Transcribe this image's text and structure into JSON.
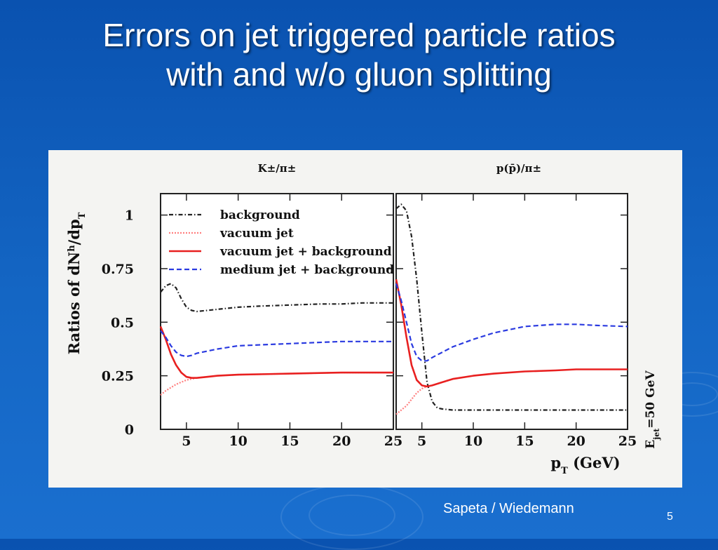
{
  "slide": {
    "title_line1": "Errors on jet triggered particle ratios",
    "title_line2": "with and w/o gluon splitting",
    "footer_credit": "Sapeta / Wiedemann",
    "page_number": "5"
  },
  "chart_data": {
    "type": "line",
    "ylabel": "Ratios of dN^h/dp_T",
    "xlabel": "p_T (GeV)",
    "side_label": "E_jet=50 GeV",
    "xlim": [
      2.5,
      25
    ],
    "ylim": [
      0,
      1.1
    ],
    "x_ticks": [
      5,
      10,
      15,
      20,
      25
    ],
    "y_ticks": [
      0,
      0.25,
      0.5,
      0.75,
      1
    ],
    "x_tick_labels": [
      "5",
      "10",
      "15",
      "20",
      "25"
    ],
    "y_tick_labels": [
      "0",
      "0.25",
      "0.5",
      "0.75",
      "1"
    ],
    "legend_position": "top-left of left panel",
    "series_styles": [
      {
        "name": "background",
        "color": "#222222",
        "dash": "dashdot"
      },
      {
        "name": "vacuum jet",
        "color": "#ff8080",
        "dash": "dotted"
      },
      {
        "name": "vacuum jet + background",
        "color": "#e82020",
        "dash": "solid"
      },
      {
        "name": "medium jet + background",
        "color": "#2a3ae0",
        "dash": "dashed"
      }
    ],
    "panels": [
      {
        "title": "K±/π±",
        "series": [
          {
            "name": "background",
            "x": [
              2.5,
              3,
              3.5,
              4,
              4.5,
              5,
              5.5,
              6,
              7,
              8,
              10,
              12,
              15,
              18,
              20,
              22,
              25
            ],
            "y": [
              0.64,
              0.67,
              0.68,
              0.66,
              0.61,
              0.57,
              0.555,
              0.55,
              0.555,
              0.56,
              0.57,
              0.575,
              0.58,
              0.585,
              0.585,
              0.59,
              0.59
            ]
          },
          {
            "name": "vacuum jet",
            "x": [
              2.5,
              3,
              4,
              5,
              6,
              8,
              10,
              15,
              20,
              25
            ],
            "y": [
              0.16,
              0.18,
              0.21,
              0.23,
              0.24,
              0.25,
              0.255,
              0.26,
              0.265,
              0.265
            ]
          },
          {
            "name": "vacuum jet + background",
            "x": [
              2.5,
              3,
              3.5,
              4,
              4.5,
              5,
              5.5,
              6,
              7,
              8,
              10,
              15,
              20,
              25
            ],
            "y": [
              0.48,
              0.42,
              0.35,
              0.3,
              0.265,
              0.245,
              0.24,
              0.24,
              0.245,
              0.25,
              0.255,
              0.26,
              0.265,
              0.265
            ]
          },
          {
            "name": "medium jet + background",
            "x": [
              2.5,
              3,
              3.5,
              4,
              4.5,
              5,
              5.5,
              6,
              8,
              10,
              15,
              20,
              25
            ],
            "y": [
              0.46,
              0.43,
              0.39,
              0.36,
              0.345,
              0.34,
              0.345,
              0.355,
              0.375,
              0.39,
              0.4,
              0.41,
              0.41
            ]
          }
        ]
      },
      {
        "title": "p(p̄)/π±",
        "series": [
          {
            "name": "background",
            "x": [
              2.5,
              3,
              3.5,
              4,
              4.5,
              5,
              5.5,
              6,
              6.5,
              7,
              8,
              10,
              15,
              20,
              25
            ],
            "y": [
              1.03,
              1.05,
              1.02,
              0.9,
              0.7,
              0.45,
              0.22,
              0.13,
              0.1,
              0.095,
              0.09,
              0.09,
              0.09,
              0.09,
              0.09
            ]
          },
          {
            "name": "vacuum jet",
            "x": [
              2.5,
              3,
              3.5,
              4,
              4.5,
              5,
              5.5,
              6
            ],
            "y": [
              0.07,
              0.09,
              0.11,
              0.14,
              0.17,
              0.19,
              0.2,
              0.205
            ]
          },
          {
            "name": "vacuum jet + background",
            "x": [
              2.5,
              3,
              3.5,
              4,
              4.5,
              5,
              5.5,
              6,
              7,
              8,
              10,
              12,
              15,
              18,
              20,
              22,
              25
            ],
            "y": [
              0.7,
              0.58,
              0.43,
              0.3,
              0.23,
              0.205,
              0.2,
              0.205,
              0.22,
              0.235,
              0.25,
              0.26,
              0.27,
              0.275,
              0.28,
              0.28,
              0.28
            ]
          },
          {
            "name": "medium jet + background",
            "x": [
              2.5,
              3,
              3.5,
              4,
              4.5,
              5,
              5.5,
              6,
              7,
              8,
              10,
              12,
              15,
              18,
              20,
              22,
              25
            ],
            "y": [
              0.68,
              0.6,
              0.5,
              0.4,
              0.34,
              0.32,
              0.32,
              0.335,
              0.36,
              0.385,
              0.42,
              0.45,
              0.48,
              0.49,
              0.49,
              0.485,
              0.48
            ]
          }
        ]
      }
    ]
  }
}
